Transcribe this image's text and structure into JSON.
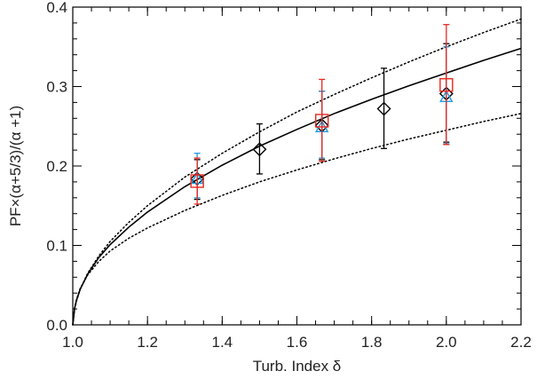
{
  "chart_data": {
    "type": "scatter",
    "title": "",
    "xlabel": "Turb. Index δ",
    "ylabel": "PF×(α+5/3)/(α +1)",
    "xlim": [
      1.0,
      2.2
    ],
    "ylim": [
      0.0,
      0.4
    ],
    "xticks": [
      "1.0",
      "1.2",
      "1.4",
      "1.6",
      "1.8",
      "2.0",
      "2.2"
    ],
    "yticks": [
      "0.0",
      "0.1",
      "0.2",
      "0.3",
      "0.4"
    ],
    "grid": false,
    "legend": "none",
    "series": [
      {
        "marker": "diamond",
        "color": "#000000",
        "points": [
          {
            "x": 1.333,
            "y": 0.184,
            "ylo": 0.158,
            "yhi": 0.208
          },
          {
            "x": 1.5,
            "y": 0.221,
            "ylo": 0.19,
            "yhi": 0.253
          },
          {
            "x": 1.667,
            "y": 0.251,
            "ylo": 0.208,
            "yhi": 0.294
          },
          {
            "x": 1.833,
            "y": 0.272,
            "ylo": 0.222,
            "yhi": 0.323
          },
          {
            "x": 2.0,
            "y": 0.291,
            "ylo": 0.23,
            "yhi": 0.354
          }
        ]
      },
      {
        "marker": "square",
        "color": "#e8281e",
        "points": [
          {
            "x": 1.333,
            "y": 0.181,
            "ylo": 0.152,
            "yhi": 0.21
          },
          {
            "x": 1.667,
            "y": 0.257,
            "ylo": 0.206,
            "yhi": 0.309
          },
          {
            "x": 2.0,
            "y": 0.302,
            "ylo": 0.227,
            "yhi": 0.378
          }
        ]
      },
      {
        "marker": "triangle",
        "color": "#1e9be0",
        "points": [
          {
            "x": 1.333,
            "y": 0.184,
            "ylo": 0.16,
            "yhi": 0.216
          },
          {
            "x": 1.667,
            "y": 0.249,
            "ylo": 0.21,
            "yhi": 0.294
          },
          {
            "x": 2.0,
            "y": 0.287,
            "ylo": 0.228,
            "yhi": 0.35
          }
        ]
      }
    ],
    "curves": [
      {
        "style": "solid",
        "color": "#000000",
        "x": [
          1.0,
          1.005,
          1.01,
          1.02,
          1.04,
          1.07,
          1.1,
          1.15,
          1.2,
          1.3,
          1.4,
          1.5,
          1.6,
          1.7,
          1.8,
          1.9,
          2.0,
          2.1,
          2.2
        ],
        "y": [
          0.0,
          0.021,
          0.031,
          0.045,
          0.064,
          0.085,
          0.101,
          0.123,
          0.142,
          0.174,
          0.201,
          0.225,
          0.246,
          0.266,
          0.284,
          0.301,
          0.317,
          0.333,
          0.348
        ]
      },
      {
        "style": "dotted",
        "color": "#000000",
        "x": [
          1.0,
          1.005,
          1.01,
          1.02,
          1.04,
          1.07,
          1.1,
          1.15,
          1.2,
          1.3,
          1.4,
          1.5,
          1.6,
          1.7,
          1.8,
          1.9,
          2.0,
          2.1,
          2.2
        ],
        "y": [
          0.0,
          0.02,
          0.03,
          0.045,
          0.065,
          0.087,
          0.105,
          0.129,
          0.15,
          0.186,
          0.216,
          0.243,
          0.268,
          0.29,
          0.311,
          0.331,
          0.35,
          0.368,
          0.385
        ]
      },
      {
        "style": "dotted",
        "color": "#000000",
        "x": [
          1.0,
          1.005,
          1.01,
          1.02,
          1.04,
          1.07,
          1.1,
          1.15,
          1.2,
          1.3,
          1.4,
          1.5,
          1.6,
          1.7,
          1.8,
          1.9,
          2.0,
          2.1,
          2.2
        ],
        "y": [
          0.0,
          0.022,
          0.032,
          0.046,
          0.063,
          0.08,
          0.093,
          0.109,
          0.122,
          0.144,
          0.163,
          0.18,
          0.195,
          0.209,
          0.222,
          0.234,
          0.245,
          0.256,
          0.266
        ]
      }
    ]
  }
}
